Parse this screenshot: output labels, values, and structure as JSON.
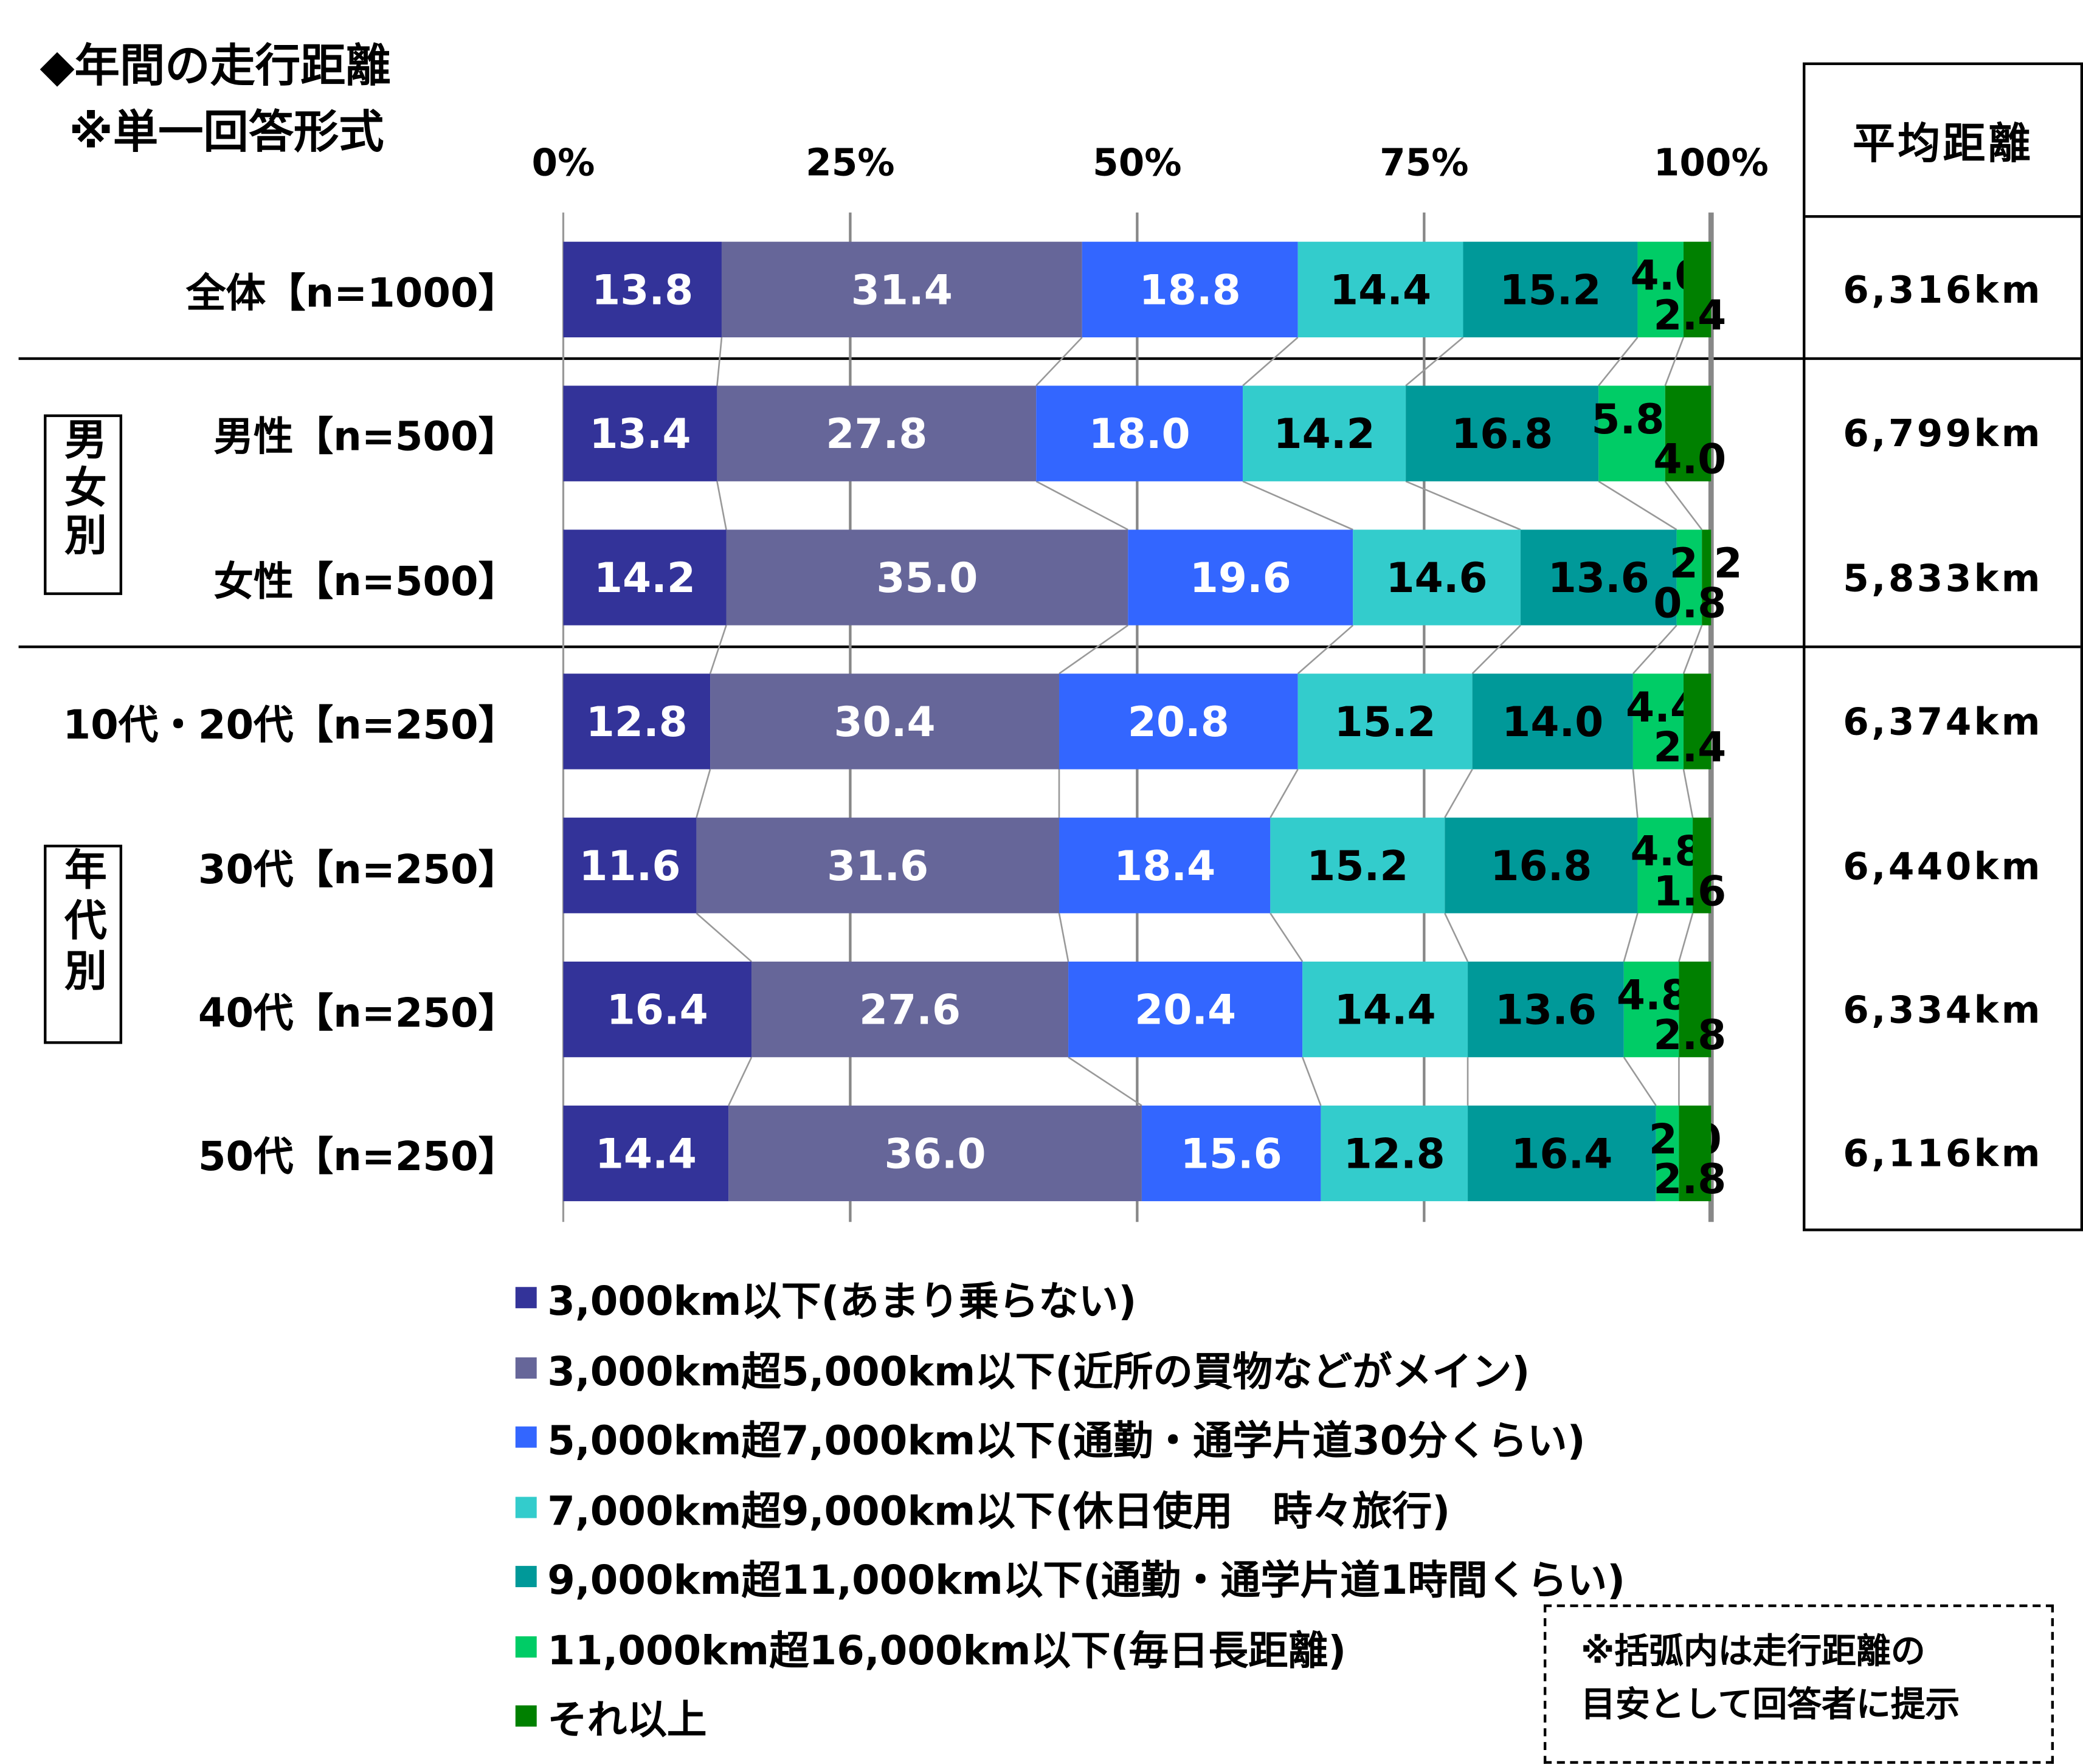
{
  "chart_data": {
    "type": "bar",
    "stacked": true,
    "orientation": "horizontal",
    "title": "◆年間の走行距離",
    "subtitle": "※単一回答形式",
    "xlim": [
      0,
      100
    ],
    "xticks": [
      "0%",
      "25%",
      "50%",
      "75%",
      "100%"
    ],
    "categories": [
      "全体【n=1000】",
      "男性【n=500】",
      "女性【n=500】",
      "10代・20代【n=250】",
      "30代【n=250】",
      "40代【n=250】",
      "50代【n=250】"
    ],
    "groups": [
      {
        "label": "男女別",
        "rows": [
          1,
          2
        ]
      },
      {
        "label": "年代別",
        "rows": [
          3,
          4,
          5,
          6
        ]
      }
    ],
    "series": [
      {
        "name": "3,000km以下(あまり乗らない)",
        "color": "#333399",
        "values": [
          13.8,
          13.4,
          14.2,
          12.8,
          11.6,
          16.4,
          14.4
        ]
      },
      {
        "name": "3,000km超5,000km以下(近所の買物などがメイン)",
        "color": "#666699",
        "values": [
          31.4,
          27.8,
          35.0,
          30.4,
          31.6,
          27.6,
          36.0
        ]
      },
      {
        "name": "5,000km超7,000km以下(通勤・通学片道30分くらい)",
        "color": "#3366FF",
        "values": [
          18.8,
          18.0,
          19.6,
          20.8,
          18.4,
          20.4,
          15.6
        ]
      },
      {
        "name": "7,000km超9,000km以下(休日使用　時々旅行)",
        "color": "#33CCCC",
        "values": [
          14.4,
          14.2,
          14.6,
          15.2,
          15.2,
          14.4,
          12.8
        ]
      },
      {
        "name": "9,000km超11,000km以下(通勤・通学片道1時間くらい)",
        "color": "#009999",
        "values": [
          15.2,
          16.8,
          13.6,
          14.0,
          16.8,
          13.6,
          16.4
        ]
      },
      {
        "name": "11,000km超16,000km以下(毎日長距離)",
        "color": "#00CC66",
        "values": [
          4.0,
          5.8,
          2.2,
          4.4,
          4.8,
          4.8,
          2.0
        ]
      },
      {
        "name": "それ以上",
        "color": "#008000",
        "values": [
          2.4,
          4.0,
          0.8,
          2.4,
          1.6,
          2.8,
          2.8
        ]
      }
    ],
    "average": {
      "header": "平均距離",
      "values": [
        "6,316km",
        "6,799km",
        "5,833km",
        "6,374km",
        "6,440km",
        "6,334km",
        "6,116km"
      ]
    },
    "note_lines": [
      "※括弧内は走行距離の",
      "目安として回答者に提示"
    ]
  }
}
